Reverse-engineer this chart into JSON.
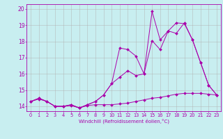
{
  "xlabel": "Windchill (Refroidissement éolien,°C)",
  "bg_color": "#c8eef0",
  "grid_color": "#b0b0b0",
  "line_color": "#aa00aa",
  "xlim": [
    -0.5,
    23.5
  ],
  "ylim": [
    13.7,
    20.3
  ],
  "yticks": [
    14,
    15,
    16,
    17,
    18,
    19,
    20
  ],
  "xticks": [
    0,
    1,
    2,
    3,
    4,
    5,
    6,
    7,
    8,
    9,
    10,
    11,
    12,
    13,
    14,
    15,
    16,
    17,
    18,
    19,
    20,
    21,
    22,
    23
  ],
  "series1_x": [
    0,
    1,
    2,
    3,
    4,
    5,
    6,
    7,
    8,
    9,
    10,
    11,
    12,
    13,
    14,
    15,
    16,
    17,
    18,
    19,
    20,
    21,
    22,
    23
  ],
  "series1_y": [
    14.3,
    14.45,
    14.3,
    14.0,
    14.0,
    14.05,
    13.9,
    14.05,
    14.1,
    14.1,
    14.1,
    14.15,
    14.2,
    14.3,
    14.4,
    14.5,
    14.55,
    14.65,
    14.75,
    14.8,
    14.8,
    14.8,
    14.75,
    14.7
  ],
  "series2_x": [
    0,
    1,
    2,
    3,
    4,
    5,
    6,
    7,
    8,
    9,
    10,
    11,
    12,
    13,
    14,
    15,
    16,
    17,
    18,
    19,
    20,
    21,
    22,
    23
  ],
  "series2_y": [
    14.3,
    14.5,
    14.3,
    14.0,
    14.0,
    14.1,
    13.9,
    14.1,
    14.3,
    14.7,
    15.4,
    15.8,
    16.2,
    15.9,
    16.0,
    18.05,
    17.5,
    18.65,
    19.15,
    19.1,
    18.1,
    16.7,
    15.3,
    14.7
  ],
  "series3_x": [
    0,
    1,
    2,
    3,
    4,
    5,
    6,
    7,
    8,
    9,
    10,
    11,
    12,
    13,
    14,
    15,
    16,
    17,
    18,
    19,
    20,
    21,
    22,
    23
  ],
  "series3_y": [
    14.3,
    14.5,
    14.3,
    14.0,
    14.0,
    14.1,
    13.9,
    14.1,
    14.3,
    14.7,
    15.4,
    17.6,
    17.5,
    17.1,
    16.0,
    19.85,
    18.1,
    18.65,
    18.5,
    19.15,
    18.1,
    16.7,
    15.3,
    14.7
  ]
}
